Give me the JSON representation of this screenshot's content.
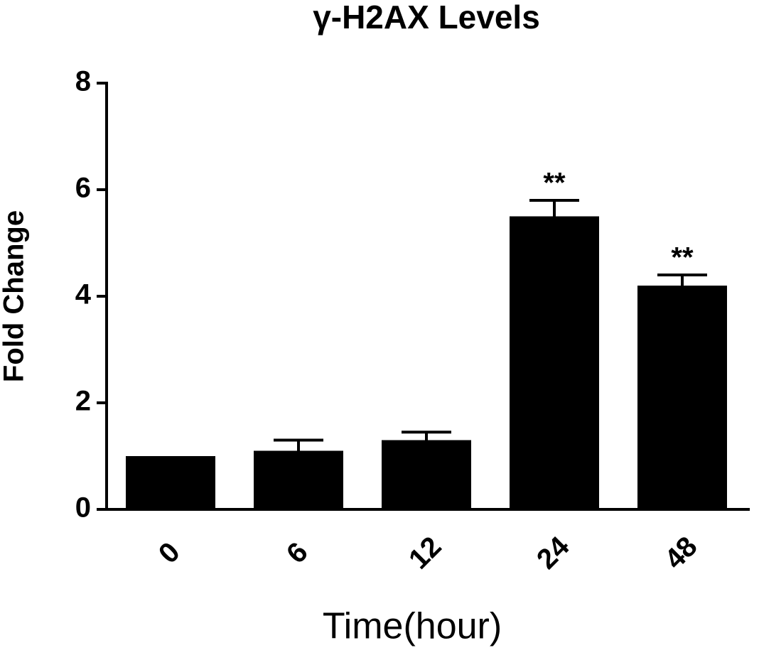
{
  "chart_data": {
    "type": "bar",
    "title": "γ-H2AX Levels",
    "x_label": "Time(hour)",
    "y_label": "Fold Change",
    "categories": [
      "0",
      "6",
      "12",
      "24",
      "48"
    ],
    "values": [
      1.0,
      1.1,
      1.3,
      5.5,
      4.2
    ],
    "errors": [
      0,
      0.2,
      0.15,
      0.3,
      0.2
    ],
    "significance": [
      null,
      null,
      null,
      "**",
      "**"
    ],
    "color": "#000000",
    "ylim": [
      0,
      8
    ],
    "yticks": [
      0,
      2,
      4,
      6,
      8
    ],
    "grid": false
  }
}
